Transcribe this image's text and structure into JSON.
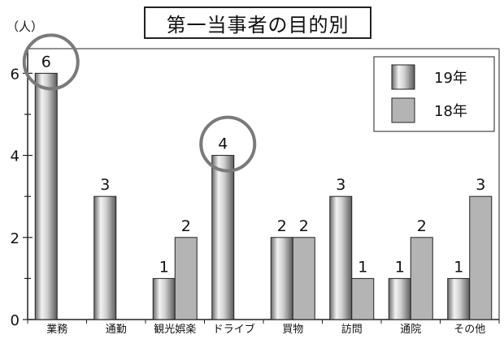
{
  "chart_data": {
    "type": "bar",
    "title": "第一当事者の目的別",
    "unit_label": "（人）",
    "categories": [
      "業務",
      "通勤",
      "観光娯楽",
      "ドライブ",
      "買物",
      "訪問",
      "通院",
      "その他"
    ],
    "series": [
      {
        "name": "19年",
        "values": [
          6,
          3,
          1,
          4,
          2,
          3,
          1,
          1
        ],
        "color": "#a0a0a0",
        "style": "cylinder"
      },
      {
        "name": "18年",
        "values": [
          0,
          0,
          2,
          0,
          2,
          1,
          2,
          3
        ],
        "color": "#b4b4b4",
        "style": "flat"
      }
    ],
    "value_labels": [
      [
        "6",
        "3",
        "1",
        "4",
        "2",
        "3",
        "1",
        "1"
      ],
      [
        "",
        "",
        "2",
        "",
        "2",
        "1",
        "2",
        "3"
      ]
    ],
    "ylim": [
      0,
      6.6
    ],
    "yticks": [
      "0",
      "2",
      "4",
      "6"
    ],
    "highlighted": [
      "業務 19年",
      "ドライブ 19年"
    ],
    "legend_position": "top-right",
    "grid": false
  }
}
